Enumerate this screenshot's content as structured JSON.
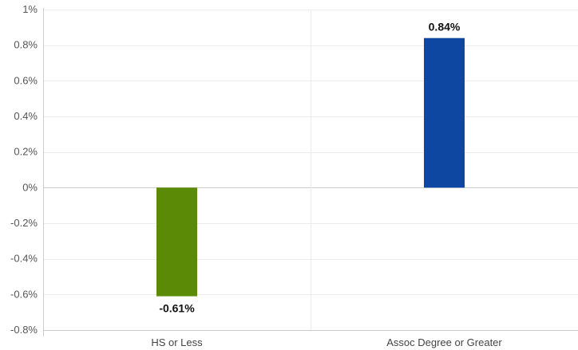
{
  "chart_data": {
    "type": "bar",
    "categories": [
      "HS or Less",
      "Assoc Degree or Greater"
    ],
    "values": [
      -0.61,
      0.84
    ],
    "value_labels": [
      "-0.61%",
      "0.84%"
    ],
    "colors": [
      "#5b8a06",
      "#0d47a1"
    ],
    "ylim": [
      -0.8,
      1.0
    ],
    "y_ticks": [
      {
        "value": 1.0,
        "label": "1%"
      },
      {
        "value": 0.8,
        "label": "0.8%"
      },
      {
        "value": 0.6,
        "label": "0.6%"
      },
      {
        "value": 0.4,
        "label": "0.4%"
      },
      {
        "value": 0.2,
        "label": "0.2%"
      },
      {
        "value": 0.0,
        "label": "0%"
      },
      {
        "value": -0.2,
        "label": "-0.2%"
      },
      {
        "value": -0.4,
        "label": "-0.4%"
      },
      {
        "value": -0.6,
        "label": "-0.6%"
      },
      {
        "value": -0.8,
        "label": "-0.8%"
      }
    ],
    "grid": true,
    "legend": "none"
  }
}
